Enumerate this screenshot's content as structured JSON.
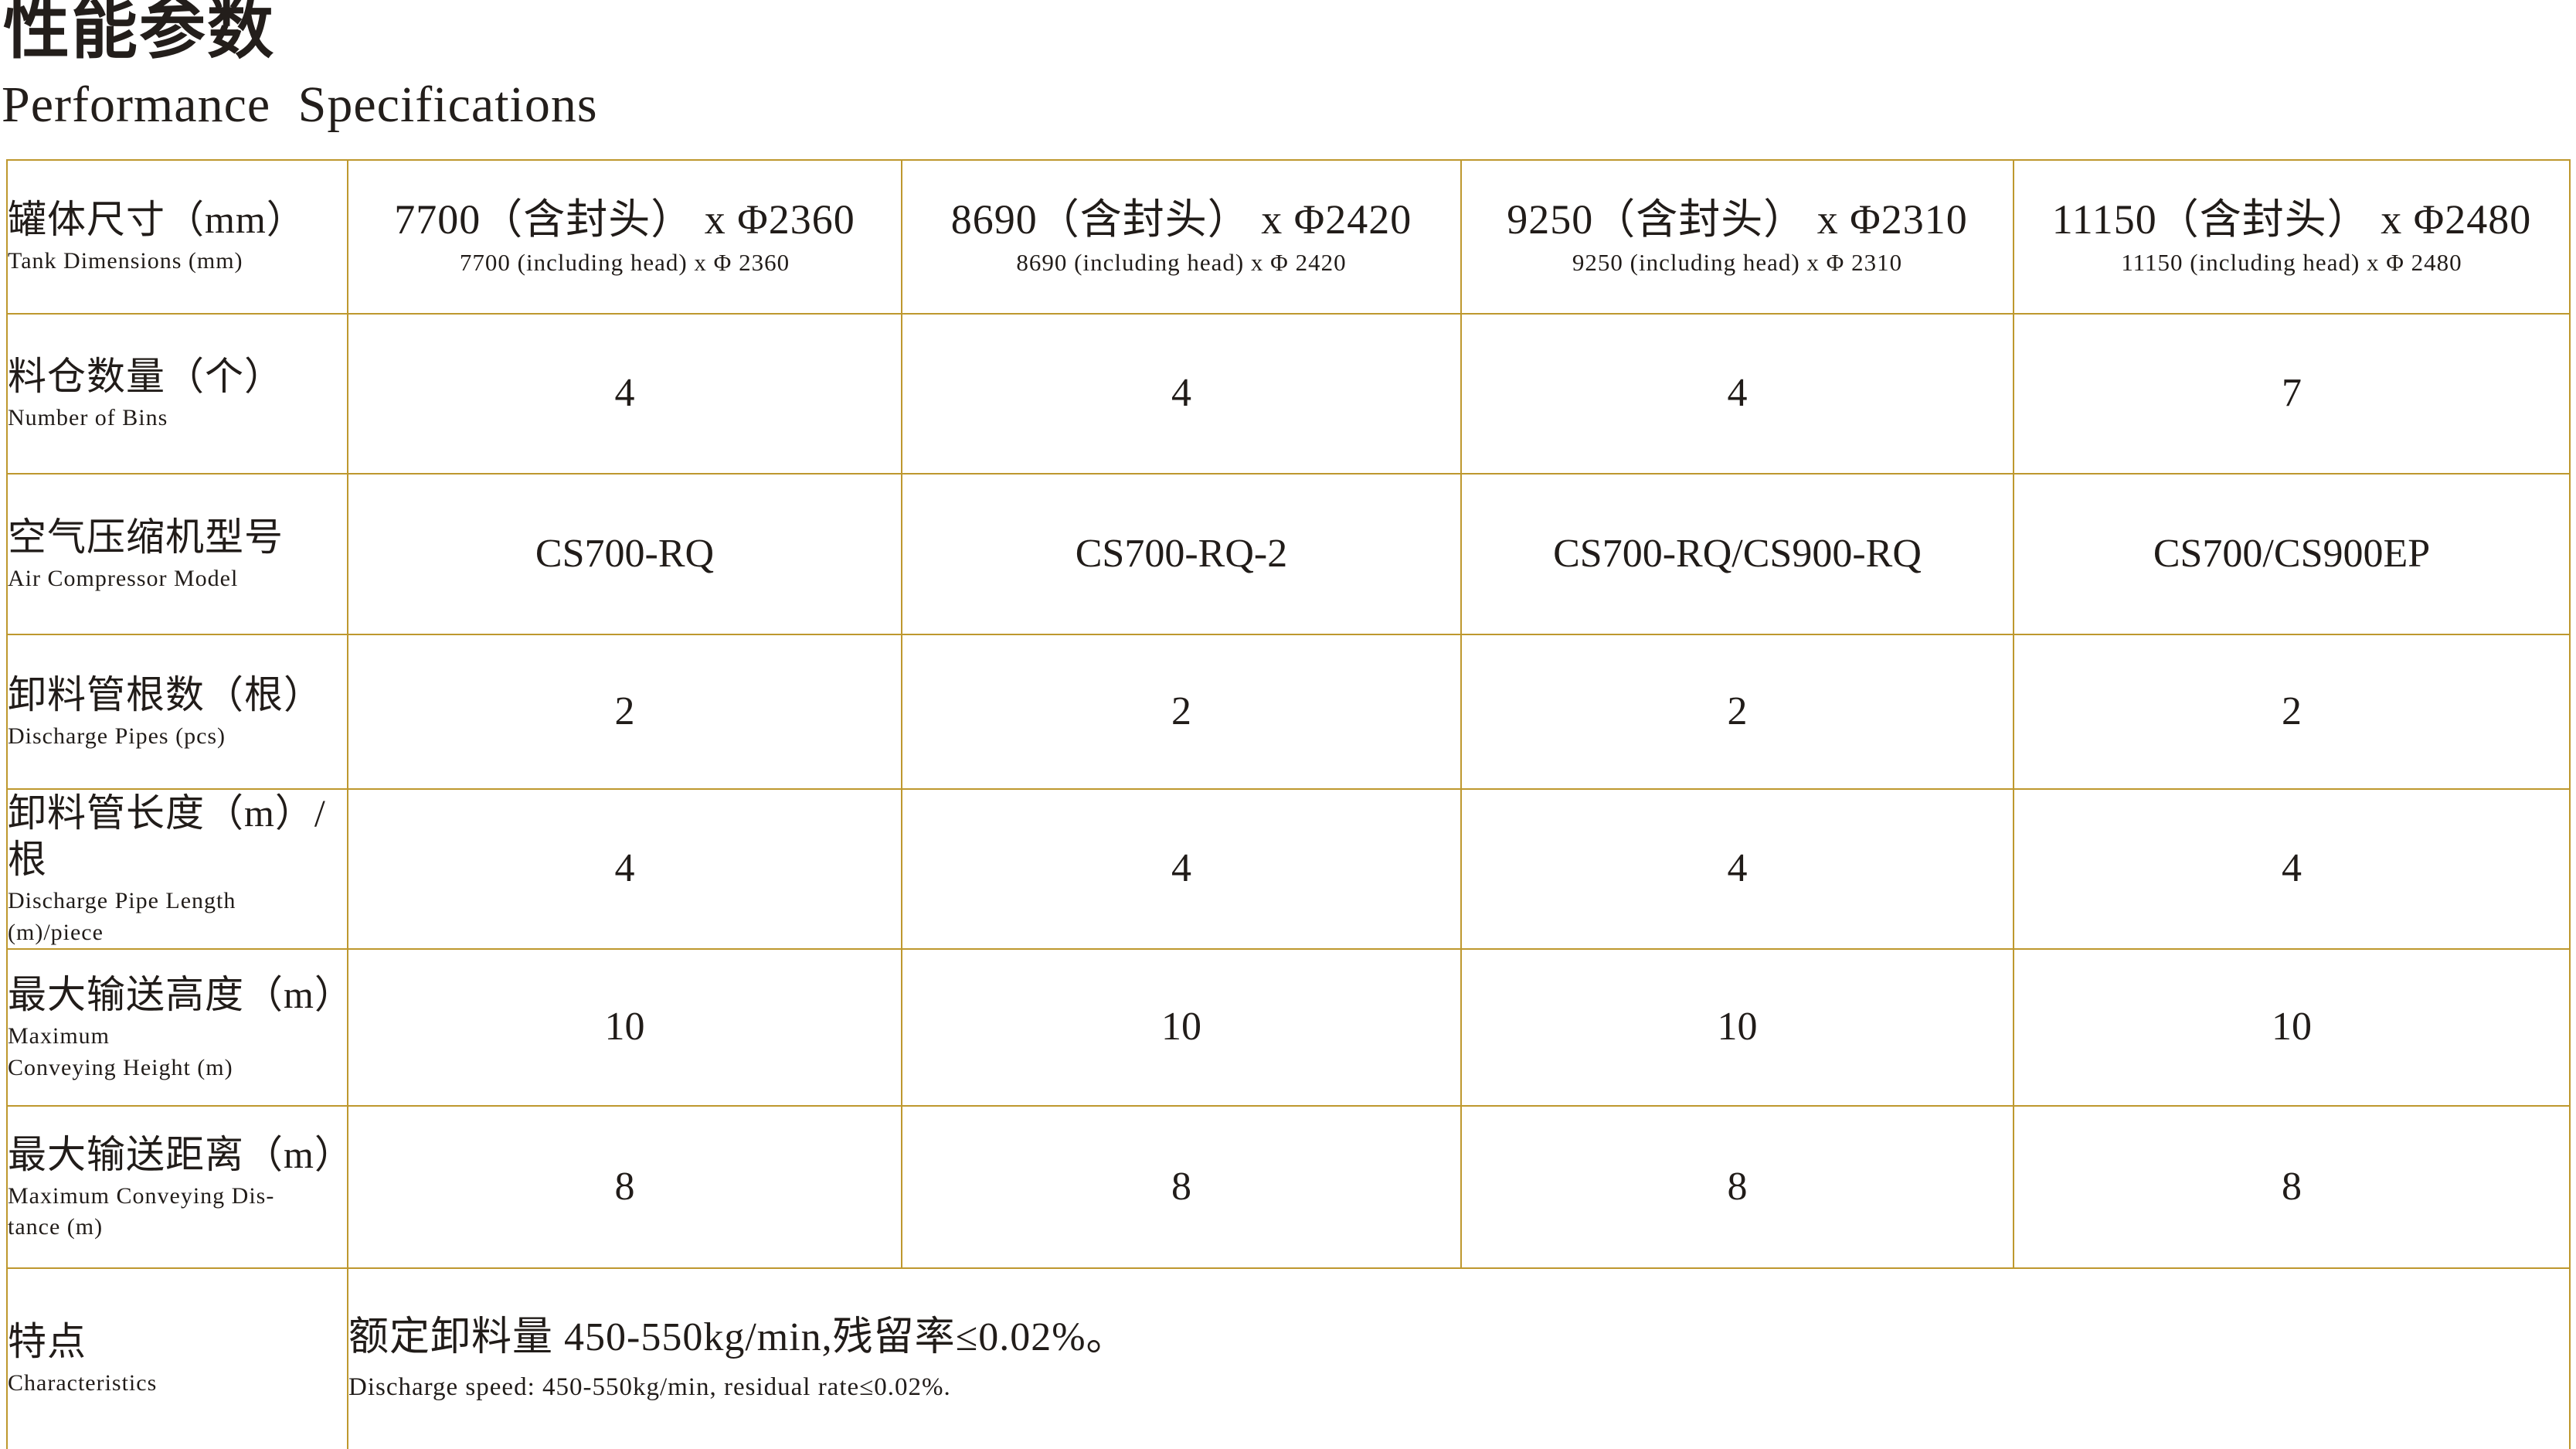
{
  "page": {
    "title_zh": "性能参数",
    "title_en": "Performance Specifications"
  },
  "colors": {
    "border": "#be982e",
    "text": "#211c19",
    "background": "#ffffff"
  },
  "table": {
    "header_row": {
      "label_zh": "罐体尺寸（mm）",
      "label_en": "Tank Dimensions (mm)",
      "cells": [
        {
          "main": "7700（含封头） x Φ2360",
          "sub": "7700 (including head) x Φ 2360"
        },
        {
          "main": "8690（含封头） x Φ2420",
          "sub": "8690 (including head) x Φ 2420"
        },
        {
          "main": "9250（含封头） x Φ2310",
          "sub": "9250 (including head) x Φ 2310"
        },
        {
          "main": "11150（含封头） x Φ2480",
          "sub": "11150 (including head) x Φ 2480"
        }
      ]
    },
    "rows": [
      {
        "label_zh": "料仓数量（个）",
        "label_en": "Number of Bins",
        "values": [
          "4",
          "4",
          "4",
          "7"
        ]
      },
      {
        "label_zh": "空气压缩机型号",
        "label_en": "Air Compressor Model",
        "values": [
          "CS700-RQ",
          "CS700-RQ-2",
          "CS700-RQ/CS900-RQ",
          "CS700/CS900EP"
        ]
      },
      {
        "label_zh": "卸料管根数（根）",
        "label_en": "Discharge Pipes (pcs)",
        "values": [
          "2",
          "2",
          "2",
          "2"
        ]
      },
      {
        "label_zh": "卸料管长度（m）/根",
        "label_en": "Discharge Pipe Length\n(m)/piece",
        "values": [
          "4",
          "4",
          "4",
          "4"
        ]
      },
      {
        "label_zh": "最大输送高度（m）",
        "label_en": "Maximum\nConveying Height (m)",
        "values": [
          "10",
          "10",
          "10",
          "10"
        ]
      },
      {
        "label_zh": "最大输送距离（m）",
        "label_en": "Maximum Conveying Dis-\ntance (m)",
        "values": [
          "8",
          "8",
          "8",
          "8"
        ]
      }
    ],
    "footer_row": {
      "label_zh": "特点",
      "label_en": "Characteristics",
      "content_zh": "额定卸料量 450-550kg/min,残留率≤0.02%。",
      "content_en": "Discharge speed: 450-550kg/min, residual rate≤0.02%."
    }
  }
}
